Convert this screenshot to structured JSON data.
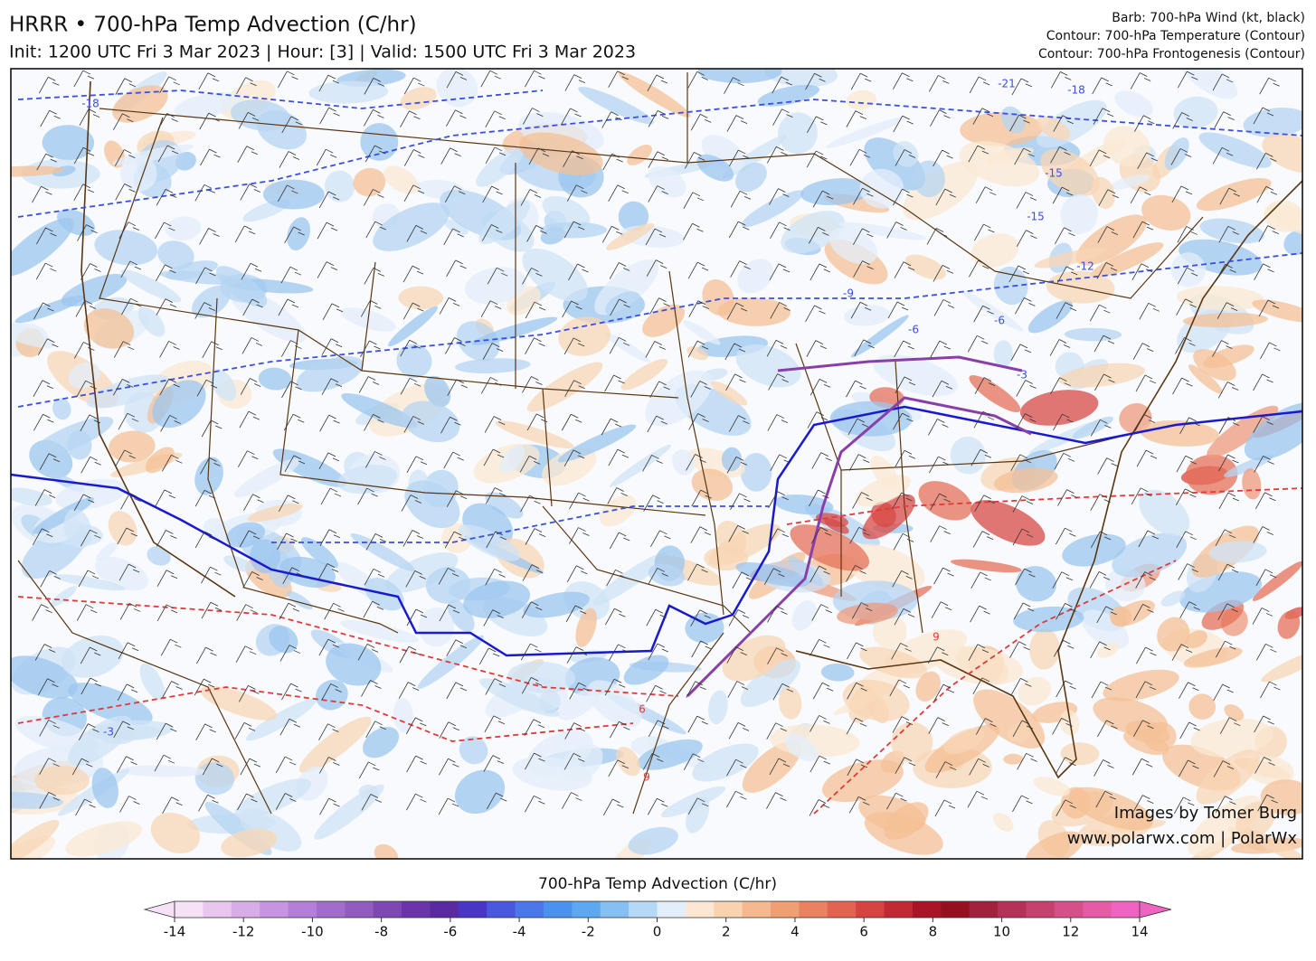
{
  "header": {
    "title": "HRRR • 700-hPa Temp Advection (C/hr)",
    "subtitle": "Init: 1200 UTC Fri 3 Mar 2023 | Hour: [3] | Valid: 1500 UTC Fri 3 Mar 2023",
    "legend": [
      "Barb: 700-hPa Wind (kt, black)",
      "Contour: 700-hPa Temperature (Contour)",
      "Contour: 700-hPa Frontogenesis (Contour)"
    ]
  },
  "map": {
    "contour_labels": [
      "-18",
      "-15",
      "-21",
      "-18",
      "-15",
      "-12",
      "-9",
      "-6",
      "-6",
      "-3",
      "-3",
      "6",
      "9",
      "9"
    ],
    "credits": [
      "Images by Tomer Burg",
      "www.polarwx.com | PolarWx"
    ]
  },
  "colorbar": {
    "title": "700-hPa Temp Advection (C/hr)",
    "lim": [
      -14,
      14
    ],
    "ticks": [
      -14,
      -12,
      -10,
      -8,
      -6,
      -4,
      -2,
      0,
      2,
      4,
      6,
      8,
      10,
      12,
      14
    ],
    "colors": [
      "#f6e2f6",
      "#e8c6ee",
      "#d7ade8",
      "#c694e1",
      "#b47fd8",
      "#a26ccc",
      "#905cc0",
      "#7c48b4",
      "#6a35a9",
      "#5a2aa2",
      "#4a36c4",
      "#4a58df",
      "#4a77ea",
      "#4b92ee",
      "#5ca8f1",
      "#86c0f3",
      "#b4d9f7",
      "#e2effa",
      "#fbe7d3",
      "#f9d2b0",
      "#f6b98e",
      "#f09f73",
      "#ea8160",
      "#e2634f",
      "#d54440",
      "#c22a33",
      "#a91427",
      "#95111f"
    ],
    "colors_over": [
      "#a2223e",
      "#b43258",
      "#c5426f",
      "#d5508a",
      "#e55ba6",
      "#ee64c0"
    ]
  }
}
